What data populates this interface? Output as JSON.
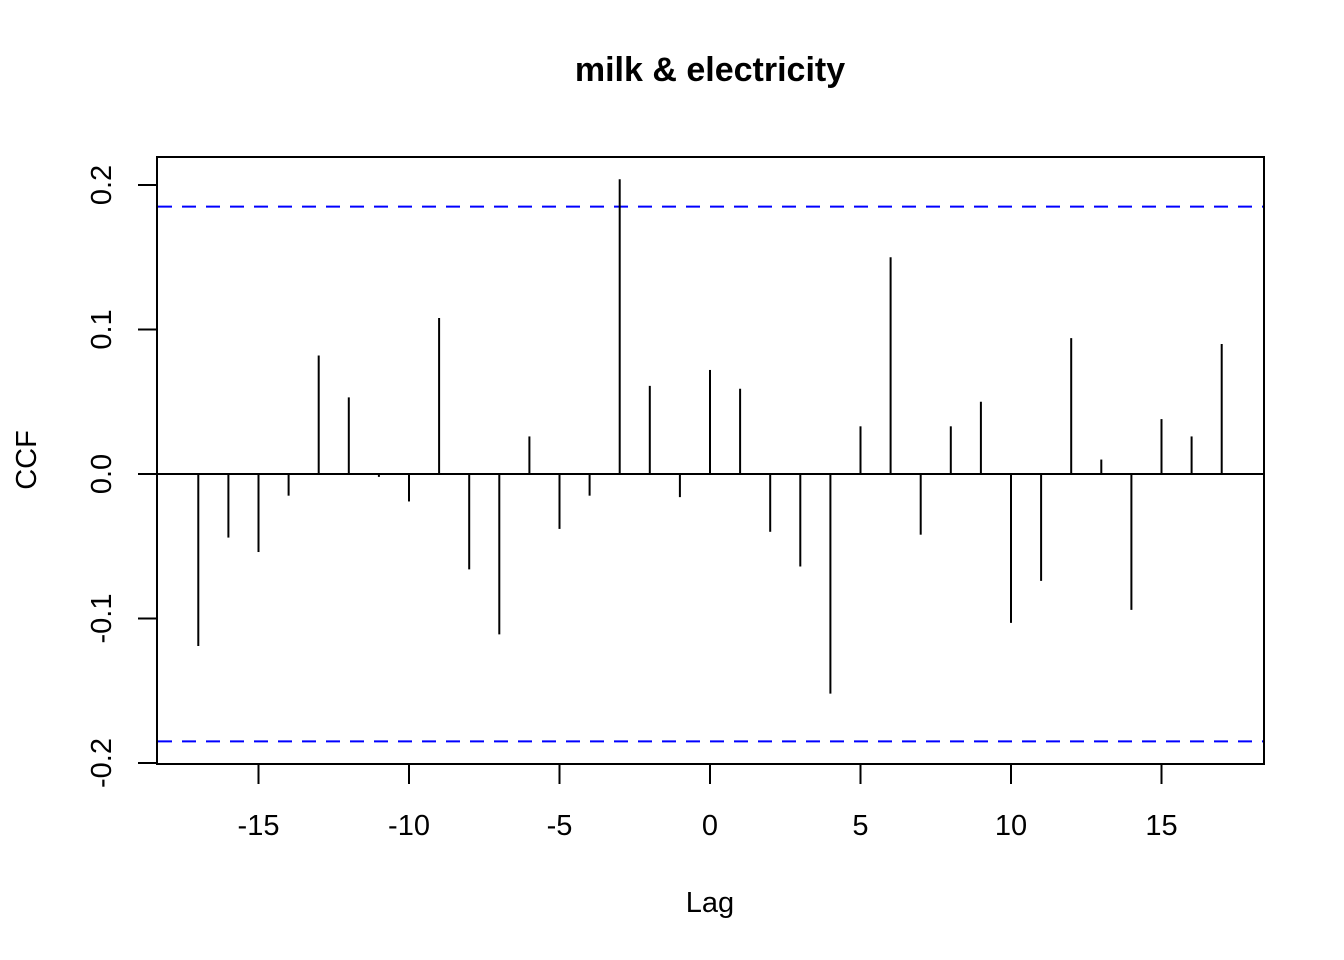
{
  "chart_data": {
    "type": "bar",
    "subtype": "cross-correlation lollipop",
    "title": "milk & electricity",
    "xlabel": "Lag",
    "ylabel": "CCF",
    "xlim": [
      -18.5,
      18.5
    ],
    "ylim": [
      -0.2,
      0.2
    ],
    "xticks": [
      -15,
      -10,
      -5,
      0,
      5,
      10,
      15
    ],
    "xtick_labels": [
      "-15",
      "-10",
      "-5",
      "0",
      "5",
      "10",
      "15"
    ],
    "yticks": [
      -0.2,
      -0.1,
      0.0,
      0.1,
      0.2
    ],
    "ytick_labels": [
      "-0.2",
      "-0.1",
      "0.0",
      "0.1",
      "0.2"
    ],
    "grid": false,
    "zero_line": true,
    "confidence_bounds": {
      "upper": 0.185,
      "lower": -0.185,
      "color": "#0000ff",
      "style": "dashed"
    },
    "series": [
      {
        "color": "#000000",
        "x": [
          -17,
          -16,
          -15,
          -14,
          -13,
          -12,
          -11,
          -10,
          -9,
          -8,
          -7,
          -6,
          -5,
          -4,
          -3,
          -2,
          -1,
          0,
          1,
          2,
          3,
          4,
          5,
          6,
          7,
          8,
          9,
          10,
          11,
          12,
          13,
          14,
          15,
          16,
          17
        ],
        "values": [
          -0.119,
          -0.044,
          -0.054,
          -0.015,
          0.082,
          0.053,
          -0.002,
          -0.019,
          0.108,
          -0.066,
          -0.111,
          0.026,
          -0.038,
          -0.015,
          0.204,
          0.061,
          -0.016,
          0.072,
          0.059,
          -0.04,
          -0.064,
          -0.152,
          0.033,
          0.15,
          -0.042,
          0.033,
          0.05,
          -0.103,
          -0.074,
          0.094,
          0.01,
          -0.094,
          0.038,
          0.026,
          0.09
        ]
      }
    ]
  }
}
